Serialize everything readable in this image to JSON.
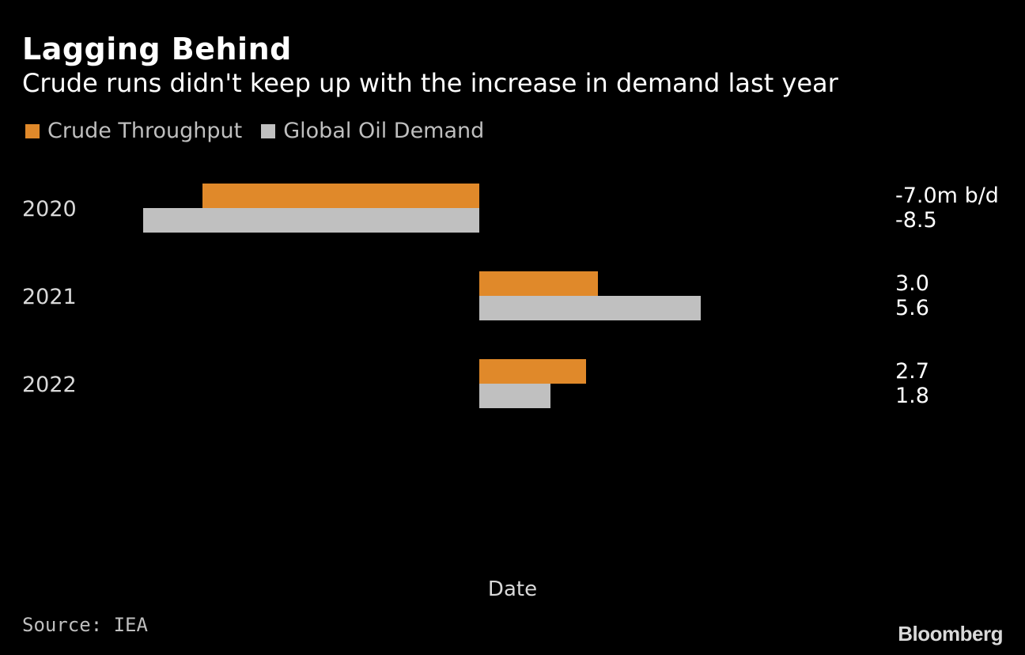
{
  "header": {
    "title": "Lagging Behind",
    "subtitle": "Crude runs didn't keep up with the increase in demand last year"
  },
  "footer": {
    "source": "Source: IEA",
    "brand": "Bloomberg"
  },
  "colors": {
    "background": "#000000",
    "crude_throughput": "#e0892a",
    "global_oil_demand": "#c0c0c0"
  },
  "chart_data": {
    "type": "bar",
    "orientation": "horizontal",
    "title": "Lagging Behind",
    "subtitle": "Crude runs didn't keep up with the increase in demand last year",
    "xlabel": "Date",
    "ylabel": "",
    "unit_label": "m b/d",
    "categories": [
      "2020",
      "2021",
      "2022"
    ],
    "series": [
      {
        "name": "Crude Throughput",
        "values": [
          -7.0,
          3.0,
          2.7
        ],
        "labels": [
          "-7.0m b/d",
          "3.0",
          "2.7"
        ]
      },
      {
        "name": "Global Oil Demand",
        "values": [
          -8.5,
          5.6,
          1.8
        ],
        "labels": [
          "-8.5",
          "5.6",
          "1.8"
        ]
      }
    ],
    "xlim": [
      -8.5,
      5.6
    ],
    "grid": false,
    "legend": "top-left"
  }
}
